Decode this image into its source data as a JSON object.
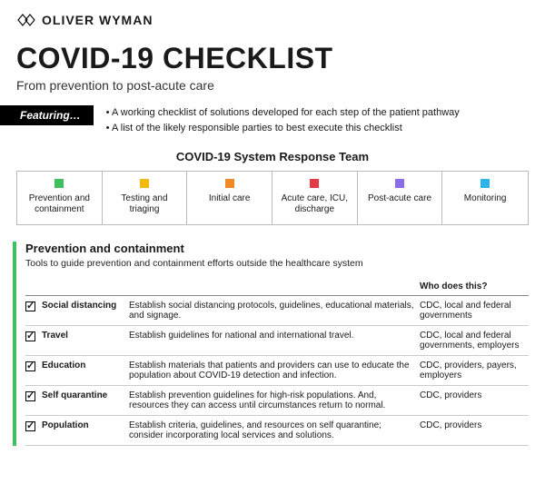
{
  "brand": {
    "name": "OLIVER WYMAN"
  },
  "title": "COVID-19 CHECKLIST",
  "subtitle": "From prevention to post-acute care",
  "featuring": {
    "label": "Featuring…",
    "items": [
      "A working checklist of solutions developed for each step of the patient pathway",
      "A list of the likely responsible parties to best execute this checklist"
    ]
  },
  "team": {
    "title": "COVID-19 System Response Team",
    "stages": [
      {
        "label": "Prevention and containment",
        "color": "#3fbf5f"
      },
      {
        "label": "Testing and triaging",
        "color": "#f2b90f"
      },
      {
        "label": "Initial care",
        "color": "#f08a24"
      },
      {
        "label": "Acute care, ICU, discharge",
        "color": "#e63946"
      },
      {
        "label": "Post-acute care",
        "color": "#8a6de8"
      },
      {
        "label": "Monitoring",
        "color": "#2fb4e9"
      }
    ]
  },
  "section": {
    "accent": "#3fbf5f",
    "title": "Prevention and containment",
    "desc": "Tools to guide prevention and containment efforts outside the healthcare system",
    "who_header": "Who does this?",
    "rows": [
      {
        "name": "Social distancing",
        "desc": "Establish social distancing protocols, guidelines, educational materials, and signage.",
        "who": "CDC, local and federal governments"
      },
      {
        "name": "Travel",
        "desc": "Establish guidelines for national and international travel.",
        "who": "CDC, local and federal governments, employers"
      },
      {
        "name": "Education",
        "desc": "Establish materials that patients and providers can use to educate the population about COVID-19 detection and infection.",
        "who": "CDC, providers, payers, employers"
      },
      {
        "name": "Self quarantine",
        "desc": "Establish prevention guidelines for high-risk populations. And, resources they can access until circumstances return to normal.",
        "who": "CDC, providers"
      },
      {
        "name": "Population",
        "desc": "Establish criteria, guidelines, and resources on self quarantine; consider incorporating local services and solutions.",
        "who": "CDC, providers"
      }
    ]
  }
}
